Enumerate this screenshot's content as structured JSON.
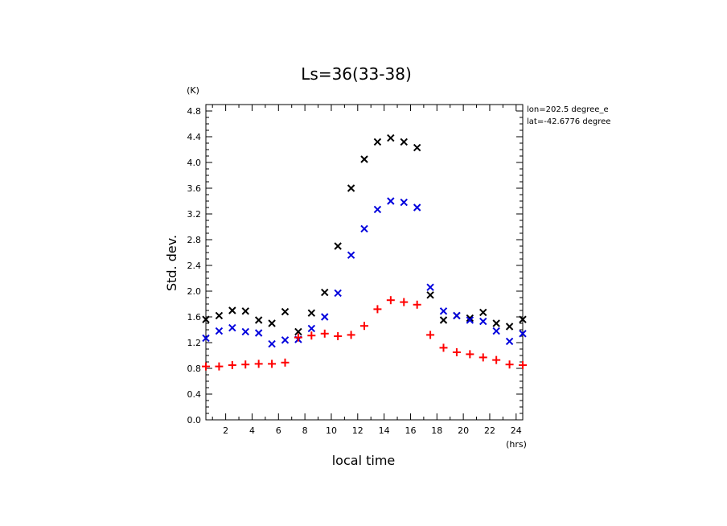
{
  "chart_data": {
    "type": "scatter",
    "title": "Ls=36(33-38)",
    "xlabel": "local time",
    "ylabel": "Std. dev.",
    "x_unit": "(hrs)",
    "y_unit": "(K)",
    "annotation": [
      "lon=202.5 degree_e",
      "lat=-42.6776 degree"
    ],
    "xlim": [
      0.5,
      24.5
    ],
    "ylim": [
      0.0,
      4.9
    ],
    "xticks": [
      2,
      4,
      6,
      8,
      10,
      12,
      14,
      16,
      18,
      20,
      22,
      24
    ],
    "yticks": [
      "0.0",
      "0.4",
      "0.8",
      "1.2",
      "1.6",
      "2.0",
      "2.4",
      "2.8",
      "3.2",
      "3.6",
      "4.0",
      "4.4",
      "4.8"
    ],
    "x": [
      0.5,
      1.5,
      2.5,
      3.5,
      4.5,
      5.5,
      6.5,
      7.5,
      8.5,
      9.5,
      10.5,
      11.5,
      12.5,
      13.5,
      14.5,
      15.5,
      16.5,
      17.5,
      18.5,
      19.5,
      20.5,
      21.5,
      22.5,
      23.5,
      24.5
    ],
    "series": [
      {
        "marker": "x",
        "color": "#000000",
        "values": [
          1.56,
          1.62,
          1.7,
          1.69,
          1.55,
          1.5,
          1.68,
          1.37,
          1.66,
          1.98,
          2.7,
          3.6,
          4.05,
          4.32,
          4.38,
          4.32,
          4.23,
          1.94,
          1.55,
          1.62,
          1.58,
          1.67,
          1.5,
          1.45,
          1.56
        ]
      },
      {
        "marker": "x",
        "color": "#0000dd",
        "values": [
          1.27,
          1.38,
          1.43,
          1.37,
          1.35,
          1.18,
          1.24,
          1.25,
          1.42,
          1.6,
          1.97,
          2.56,
          2.97,
          3.27,
          3.4,
          3.38,
          3.3,
          2.06,
          1.69,
          1.62,
          1.55,
          1.53,
          1.38,
          1.22,
          1.34
        ]
      },
      {
        "marker": "+",
        "color": "#ff0000",
        "values": [
          0.83,
          0.83,
          0.85,
          0.86,
          0.87,
          0.87,
          0.89,
          1.28,
          1.31,
          1.34,
          1.3,
          1.32,
          1.46,
          1.72,
          1.86,
          1.83,
          1.79,
          1.32,
          1.12,
          1.05,
          1.02,
          0.97,
          0.93,
          0.86,
          0.85
        ]
      }
    ]
  }
}
